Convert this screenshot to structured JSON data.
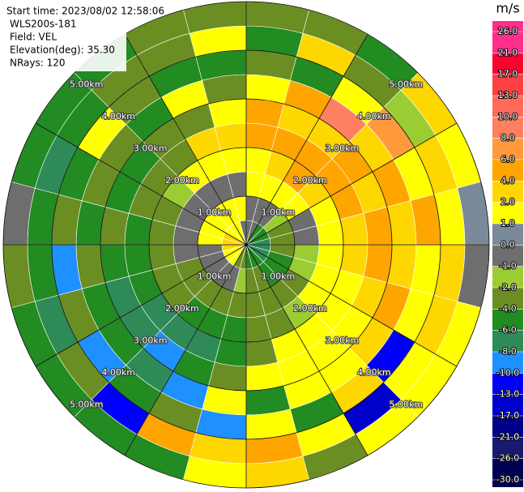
{
  "chart_data": {
    "type": "ppi",
    "info": [
      "Start time: 2023/08/02 12:58:06",
      "WLS200s-181",
      "Field: VEL",
      "Elevation(deg): 35.30",
      "NRays: 120"
    ],
    "unit": "m/s",
    "rlim": [
      0,
      5
    ],
    "rticks": [
      {
        "value": 1,
        "label": "1.00km"
      },
      {
        "value": 2,
        "label": "2.00km"
      },
      {
        "value": 3,
        "label": "3.00km"
      },
      {
        "value": 4,
        "label": "4.00km"
      },
      {
        "value": 5,
        "label": "5.00km"
      }
    ],
    "azimuths": [
      0,
      15,
      30,
      45,
      60,
      75,
      90,
      105,
      120,
      135,
      150,
      165,
      180,
      195,
      210,
      225,
      240,
      255,
      270,
      285,
      300,
      315,
      330,
      345
    ],
    "ranges": [
      0,
      0.5,
      1,
      1.5,
      2,
      2.5,
      3,
      3.5,
      4,
      4.5
    ],
    "values": [
      [
        0,
        0,
        2,
        2,
        6,
        6,
        2,
        -2,
        -4,
        -2
      ],
      [
        0,
        0,
        2,
        4,
        6,
        4,
        6,
        -4,
        4,
        -2
      ],
      [
        -4,
        0,
        2,
        6,
        6,
        4,
        10,
        2,
        -2,
        -4
      ],
      [
        -4,
        -1,
        2,
        4,
        6,
        6,
        4,
        8,
        -1,
        4
      ],
      [
        -4,
        -2,
        0,
        2,
        6,
        4,
        6,
        2,
        4,
        2
      ],
      [
        -6,
        -2,
        0,
        2,
        4,
        6,
        4,
        6,
        2,
        1
      ],
      [
        -6,
        -2,
        -1,
        2,
        4,
        6,
        4,
        2,
        4,
        0
      ],
      [
        -6,
        -4,
        -1,
        2,
        2,
        4,
        6,
        2,
        4,
        2
      ],
      [
        -6,
        -4,
        -2,
        2,
        2,
        2,
        4,
        -10,
        2,
        2
      ],
      [
        -4,
        -4,
        -2,
        -1,
        2,
        2,
        2,
        4,
        -13,
        2
      ],
      [
        -4,
        -2,
        -2,
        -2,
        2,
        2,
        2,
        -4,
        2,
        -2
      ],
      [
        -4,
        -2,
        -2,
        -2,
        -2,
        2,
        -4,
        2,
        6,
        4
      ],
      [
        -2,
        -1,
        -2,
        -4,
        -4,
        -2,
        2,
        -8,
        4,
        2
      ],
      [
        -2,
        0,
        -2,
        -4,
        -6,
        -4,
        -8,
        -2,
        6,
        -4
      ],
      [
        2,
        0,
        -2,
        -4,
        -6,
        -8,
        -6,
        -4,
        -10,
        -4
      ],
      [
        2,
        0,
        -2,
        -2,
        -6,
        -6,
        -4,
        -8,
        -2,
        -4
      ],
      [
        2,
        0,
        -2,
        -2,
        -4,
        -6,
        -4,
        -2,
        -6,
        -4
      ],
      [
        4,
        0,
        0,
        -2,
        -4,
        -4,
        -2,
        -8,
        -4,
        -2
      ],
      [
        4,
        2,
        0,
        -2,
        -4,
        -2,
        -4,
        -2,
        -4,
        0
      ],
      [
        4,
        2,
        0,
        -2,
        -2,
        -4,
        -2,
        -4,
        -6,
        -4
      ],
      [
        2,
        2,
        0,
        -1,
        -2,
        -4,
        -2,
        2,
        -4,
        -4
      ],
      [
        2,
        2,
        0,
        2,
        -2,
        -2,
        -4,
        -2,
        -2,
        -4
      ],
      [
        2,
        2,
        0,
        2,
        4,
        -2,
        2,
        -4,
        -2,
        -2
      ],
      [
        0,
        2,
        0,
        2,
        4,
        2,
        -2,
        -4,
        2,
        -2
      ]
    ],
    "colorbar": {
      "ticks": [
        {
          "value": 26,
          "label": "26.0"
        },
        {
          "value": 21,
          "label": "21.0"
        },
        {
          "value": 17,
          "label": "17.0"
        },
        {
          "value": 13,
          "label": "13.0"
        },
        {
          "value": 10,
          "label": "10.0"
        },
        {
          "value": 8,
          "label": "8.0"
        },
        {
          "value": 6,
          "label": "6.0"
        },
        {
          "value": 4,
          "label": "4.0"
        },
        {
          "value": 2,
          "label": "2.0"
        },
        {
          "value": 1,
          "label": "1.0"
        },
        {
          "value": 0,
          "label": "0.0"
        },
        {
          "value": -1,
          "label": "-1.0"
        },
        {
          "value": -2,
          "label": "-2.0"
        },
        {
          "value": -4,
          "label": "-4.0"
        },
        {
          "value": -6,
          "label": "-6.0"
        },
        {
          "value": -8,
          "label": "-8.0"
        },
        {
          "value": -10,
          "label": "-10.0"
        },
        {
          "value": -13,
          "label": "-13.0"
        },
        {
          "value": -17,
          "label": "-17.0"
        },
        {
          "value": -21,
          "label": "-21.0"
        },
        {
          "value": -26,
          "label": "-26.0"
        },
        {
          "value": -30,
          "label": "-30.0"
        }
      ],
      "colors": [
        "#ff2d8c",
        "#ff0030",
        "#ff4040",
        "#ff6a5a",
        "#ff8060",
        "#ff9a3c",
        "#ffa500",
        "#ffd700",
        "#ffff00",
        "#7a8a9a",
        "#6e6e6e",
        "#9acd32",
        "#6b8e23",
        "#228b22",
        "#2e8b57",
        "#1e90ff",
        "#0000ff",
        "#0000cd",
        "#00008b",
        "#191970",
        "#000050"
      ]
    }
  }
}
